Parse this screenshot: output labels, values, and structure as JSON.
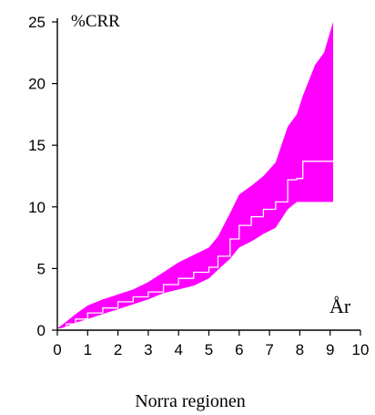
{
  "chart_data": {
    "type": "area",
    "title": "",
    "ylabel": "%CRR",
    "xlabel": "År",
    "caption": "Norra regionen",
    "xlim": [
      0,
      10
    ],
    "ylim": [
      0,
      25
    ],
    "x_ticks": [
      0,
      1,
      2,
      3,
      4,
      5,
      6,
      7,
      8,
      9,
      10
    ],
    "y_ticks": [
      0,
      5,
      10,
      15,
      20,
      25
    ],
    "grid": false,
    "colors": {
      "band": "#ff00ff",
      "estimate": "#ffffff",
      "axis": "#000000"
    },
    "series": [
      {
        "role": "estimate",
        "style": "step",
        "x": [
          0,
          0.3,
          0.6,
          1.0,
          1.5,
          2.0,
          2.5,
          3.0,
          3.5,
          4.0,
          4.5,
          5.0,
          5.3,
          5.7,
          6.0,
          6.4,
          6.8,
          7.2,
          7.6,
          7.9,
          8.1,
          8.5,
          8.8,
          9.1
        ],
        "y": [
          0.1,
          0.5,
          0.9,
          1.4,
          1.8,
          2.3,
          2.7,
          3.1,
          3.7,
          4.2,
          4.7,
          5.1,
          6.0,
          7.4,
          8.5,
          9.2,
          9.8,
          10.4,
          12.2,
          12.3,
          13.7,
          13.7,
          13.7,
          13.7
        ]
      },
      {
        "role": "confidence-band",
        "x": [
          0,
          0.3,
          0.6,
          1.0,
          1.5,
          2.0,
          2.5,
          3.0,
          3.5,
          4.0,
          4.5,
          5.0,
          5.3,
          5.7,
          6.0,
          6.4,
          6.8,
          7.2,
          7.6,
          7.9,
          8.1,
          8.5,
          8.8,
          9.1
        ],
        "lower": [
          0.05,
          0.3,
          0.6,
          0.9,
          1.3,
          1.7,
          2.1,
          2.5,
          3.0,
          3.3,
          3.6,
          4.2,
          4.9,
          5.8,
          6.7,
          7.2,
          7.8,
          8.3,
          9.8,
          10.4,
          10.4,
          10.4,
          10.4,
          10.4
        ],
        "upper": [
          0.15,
          0.7,
          1.3,
          2.0,
          2.5,
          2.9,
          3.3,
          3.9,
          4.7,
          5.5,
          6.1,
          6.7,
          7.6,
          9.5,
          11.0,
          11.7,
          12.5,
          13.6,
          16.5,
          17.5,
          19.0,
          21.5,
          22.5,
          25.0
        ]
      }
    ]
  }
}
